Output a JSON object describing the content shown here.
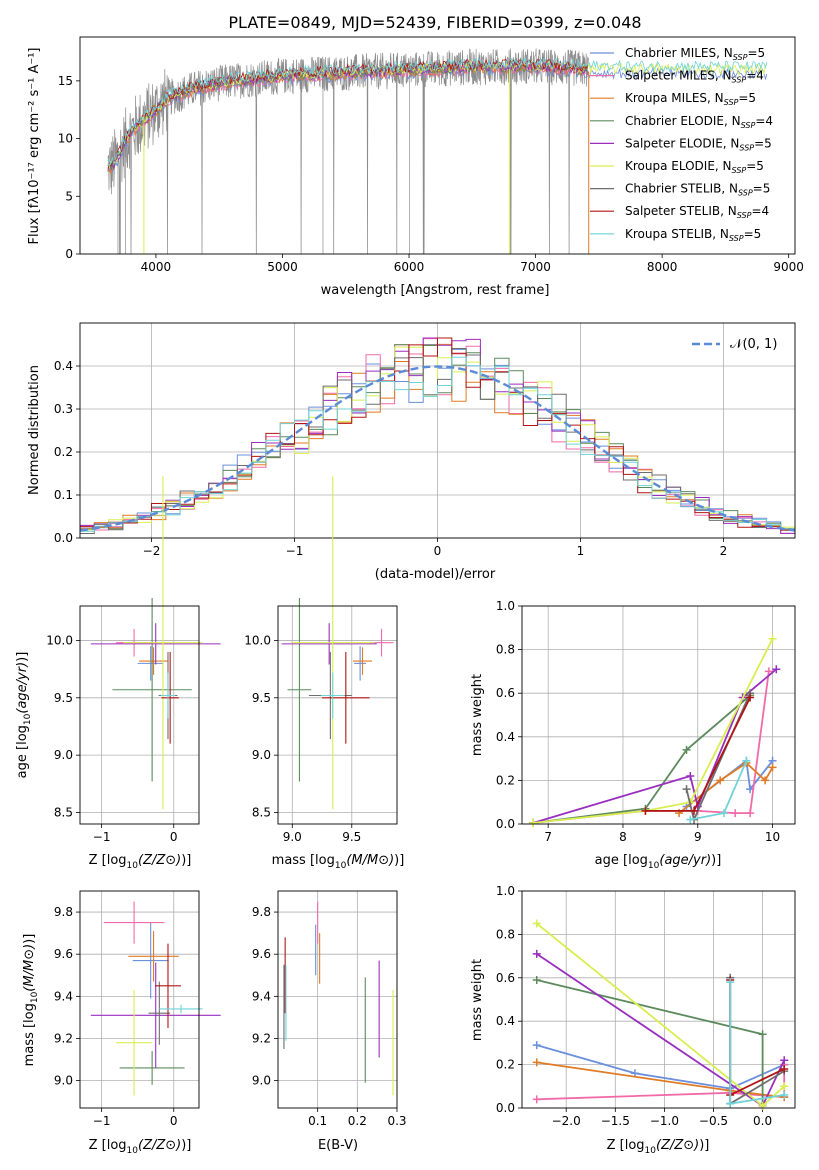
{
  "title": "PLATE=0849, MJD=52439, FIBERID=0399, z=0.048",
  "colors": {
    "Chabrier MILES": "#6a8fdc",
    "Salpeter MILES": "#f06aa8",
    "Kroupa MILES": "#e07b25",
    "Chabrier ELODIE": "#5c8a5c",
    "Salpeter ELODIE": "#9a2fbe",
    "Kroupa ELODIE": "#d9ee50",
    "Chabrier STELIB": "#6e6e6e",
    "Salpeter STELIB": "#b01515",
    "Kroupa STELIB": "#6fd3d8"
  },
  "chart_data": [
    {
      "type": "line",
      "title": "PLATE=0849, MJD=52439, FIBERID=0399, z=0.048",
      "xlabel": "wavelength [Angstrom, rest frame]",
      "ylabel": "Flux [fλ10⁻¹⁷ erg cm⁻² s⁻¹ A⁻¹]",
      "xlim": [
        3400,
        9050
      ],
      "ylim": [
        0,
        18.8
      ],
      "xticks": [
        4000,
        5000,
        6000,
        7000,
        8000,
        9000
      ],
      "yticks": [
        0,
        5,
        10,
        15
      ],
      "grid": false,
      "legend_loc": "upper right",
      "legend": [
        {
          "model": "Chabrier MILES",
          "nssp": "5"
        },
        {
          "model": "Salpeter MILES",
          "nssp": "4"
        },
        {
          "model": "Kroupa MILES",
          "nssp": "5"
        },
        {
          "model": "Chabrier ELODIE",
          "nssp": "4"
        },
        {
          "model": "Salpeter ELODIE",
          "nssp": "5"
        },
        {
          "model": "Kroupa ELODIE",
          "nssp": "5"
        },
        {
          "model": "Chabrier STELIB",
          "nssp": "5"
        },
        {
          "model": "Salpeter STELIB",
          "nssp": "4"
        },
        {
          "model": "Kroupa STELIB",
          "nssp": "5"
        }
      ],
      "data_envelope": {
        "x": [
          3650,
          3800,
          3950,
          4100,
          4300,
          4500,
          4700,
          4900,
          5100,
          5300,
          5500,
          5700,
          5900,
          6100,
          6300,
          6500,
          6700,
          6900,
          7100,
          7300,
          7420
        ],
        "y": [
          7.5,
          10.5,
          12.0,
          13.5,
          14.3,
          14.8,
          15.1,
          15.3,
          15.5,
          15.6,
          15.7,
          15.8,
          15.9,
          16.0,
          16.1,
          16.2,
          16.2,
          16.3,
          16.2,
          16.1,
          16.0
        ]
      },
      "model_extent": {
        "start": 3600,
        "end_optical": 7420,
        "end_uv": 8830
      }
    },
    {
      "type": "histogram",
      "xlabel": "(data-model)/error",
      "ylabel": "Normed distribution",
      "xlim": [
        -2.5,
        2.5
      ],
      "ylim": [
        0,
        0.5
      ],
      "xticks": [
        -2,
        -1,
        0,
        1,
        2
      ],
      "yticks": [
        0.0,
        0.1,
        0.2,
        0.3,
        0.4
      ],
      "grid": true,
      "legend_loc": "upper right",
      "reference_curve": {
        "label": "𝒩(0, 1)",
        "mean": 0,
        "sigma": 1,
        "color": "#5b8bd6"
      },
      "bin_width": 0.1
    },
    {
      "type": "errorbar",
      "xlabel": "Z [log10(Z/Z⊙)]",
      "ylabel": "age  [log10(age/yr)]",
      "xlim": [
        -1.3,
        0.35
      ],
      "ylim": [
        8.4,
        10.3
      ],
      "xticks": [
        -1,
        0
      ],
      "yticks": [
        8.5,
        9.0,
        9.5,
        10.0
      ],
      "points": [
        {
          "model": "Chabrier MILES",
          "x": -0.32,
          "xerr": 0.18,
          "y": 9.8,
          "yerr": 0.15
        },
        {
          "model": "Salpeter MILES",
          "x": -0.55,
          "xerr": 0.25,
          "y": 9.98,
          "yerr": 0.12
        },
        {
          "model": "Kroupa MILES",
          "x": -0.28,
          "xerr": 0.2,
          "y": 9.82,
          "yerr": 0.12
        },
        {
          "model": "Chabrier ELODIE",
          "x": -0.3,
          "xerr": 0.55,
          "y": 9.57,
          "yerr": 0.8
        },
        {
          "model": "Salpeter ELODIE",
          "x": -0.25,
          "xerr": 0.9,
          "y": 9.97,
          "yerr": 0.18
        },
        {
          "model": "Kroupa ELODIE",
          "x": -0.15,
          "xerr": 0.55,
          "y": 9.98,
          "yerr": 1.45
        },
        {
          "model": "Chabrier STELIB",
          "x": -0.08,
          "xerr": 0.13,
          "y": 9.52,
          "yerr": 0.38
        },
        {
          "model": "Salpeter STELIB",
          "x": -0.05,
          "xerr": 0.12,
          "y": 9.5,
          "yerr": 0.4
        },
        {
          "model": "Kroupa STELIB",
          "x": -0.08,
          "xerr": 0.1,
          "y": 9.52,
          "yerr": 0.2
        }
      ]
    },
    {
      "type": "errorbar",
      "xlabel": "mass [log10(M/M⊙)]",
      "xlim": [
        8.88,
        9.88
      ],
      "ylim": [
        8.4,
        10.3
      ],
      "xticks": [
        9.0,
        9.5
      ],
      "yticks": [
        8.5,
        9.0,
        9.5,
        10.0
      ],
      "points": [
        {
          "model": "Chabrier MILES",
          "x": 9.57,
          "xerr": 0.05,
          "y": 9.8,
          "yerr": 0.15
        },
        {
          "model": "Salpeter MILES",
          "x": 9.75,
          "xerr": 0.1,
          "y": 9.98,
          "yerr": 0.12
        },
        {
          "model": "Kroupa MILES",
          "x": 9.59,
          "xerr": 0.08,
          "y": 9.82,
          "yerr": 0.12
        },
        {
          "model": "Chabrier ELODIE",
          "x": 9.06,
          "xerr": 0.1,
          "y": 9.57,
          "yerr": 0.8
        },
        {
          "model": "Salpeter ELODIE",
          "x": 9.31,
          "xerr": 0.4,
          "y": 9.97,
          "yerr": 0.18
        },
        {
          "model": "Kroupa ELODIE",
          "x": 9.34,
          "xerr": 0.35,
          "y": 9.98,
          "yerr": 1.45
        },
        {
          "model": "Chabrier STELIB",
          "x": 9.32,
          "xerr": 0.18,
          "y": 9.52,
          "yerr": 0.38
        },
        {
          "model": "Salpeter STELIB",
          "x": 9.45,
          "xerr": 0.2,
          "y": 9.5,
          "yerr": 0.4
        },
        {
          "model": "Kroupa STELIB",
          "x": 9.34,
          "xerr": 0.1,
          "y": 9.52,
          "yerr": 0.2
        }
      ]
    },
    {
      "type": "line",
      "xlabel": "age  [log10(age/yr)]",
      "ylabel": "mass weight",
      "xlim": [
        6.65,
        10.3
      ],
      "ylim": [
        0,
        1.0
      ],
      "xticks": [
        7,
        8,
        9,
        10
      ],
      "yticks": [
        0.0,
        0.2,
        0.4,
        0.6,
        0.8,
        1.0
      ],
      "grid": true,
      "series": [
        {
          "model": "Chabrier MILES",
          "x": [
            8.85,
            9.65,
            9.7,
            10.0
          ],
          "y": [
            0.08,
            0.29,
            0.16,
            0.29
          ]
        },
        {
          "model": "Salpeter MILES",
          "x": [
            6.8,
            8.3,
            9.0,
            9.5,
            9.7,
            9.95
          ],
          "y": [
            0.005,
            0.06,
            0.06,
            0.05,
            0.05,
            0.7
          ]
        },
        {
          "model": "Kroupa MILES",
          "x": [
            8.75,
            9.3,
            9.65,
            9.9,
            10.0
          ],
          "y": [
            0.05,
            0.2,
            0.28,
            0.2,
            0.26
          ]
        },
        {
          "model": "Chabrier ELODIE",
          "x": [
            6.8,
            8.3,
            8.85,
            9.7
          ],
          "y": [
            0.005,
            0.07,
            0.34,
            0.59
          ]
        },
        {
          "model": "Salpeter ELODIE",
          "x": [
            6.8,
            8.9,
            9.0,
            9.6,
            10.05
          ],
          "y": [
            0.005,
            0.22,
            0.08,
            0.58,
            0.71
          ]
        },
        {
          "model": "Kroupa ELODIE",
          "x": [
            6.8,
            8.3,
            8.9,
            10.0
          ],
          "y": [
            0.005,
            0.06,
            0.1,
            0.85
          ]
        },
        {
          "model": "Chabrier STELIB",
          "x": [
            8.85,
            8.95,
            9.7
          ],
          "y": [
            0.16,
            0.02,
            0.6
          ]
        },
        {
          "model": "Salpeter STELIB",
          "x": [
            8.3,
            8.95,
            9.7
          ],
          "y": [
            0.06,
            0.06,
            0.58
          ]
        },
        {
          "model": "Kroupa STELIB",
          "x": [
            8.9,
            9.35,
            9.65
          ],
          "y": [
            0.02,
            0.05,
            0.29
          ]
        }
      ]
    },
    {
      "type": "errorbar",
      "xlabel": "Z [log10(Z/Z⊙)]",
      "ylabel": "mass [log10(M/M⊙)]",
      "xlim": [
        -1.3,
        0.35
      ],
      "ylim": [
        8.87,
        9.9
      ],
      "xticks": [
        -1,
        0
      ],
      "yticks": [
        9.0,
        9.2,
        9.4,
        9.6,
        9.8
      ],
      "points": [
        {
          "model": "Chabrier MILES",
          "x": -0.32,
          "xerr": 0.25,
          "y": 9.57,
          "yerr": 0.18
        },
        {
          "model": "Salpeter MILES",
          "x": -0.55,
          "xerr": 0.42,
          "y": 9.75,
          "yerr": 0.1
        },
        {
          "model": "Kroupa MILES",
          "x": -0.28,
          "xerr": 0.35,
          "y": 9.59,
          "yerr": 0.12
        },
        {
          "model": "Chabrier ELODIE",
          "x": -0.3,
          "xerr": 0.45,
          "y": 9.06,
          "yerr": 0.08
        },
        {
          "model": "Salpeter ELODIE",
          "x": -0.25,
          "xerr": 0.9,
          "y": 9.31,
          "yerr": 0.25
        },
        {
          "model": "Kroupa ELODIE",
          "x": -0.55,
          "xerr": 0.25,
          "y": 9.18,
          "yerr": 0.25
        },
        {
          "model": "Chabrier STELIB",
          "x": -0.2,
          "xerr": 0.15,
          "y": 9.32,
          "yerr": 0.15
        },
        {
          "model": "Salpeter STELIB",
          "x": -0.08,
          "xerr": 0.18,
          "y": 9.45,
          "yerr": 0.2
        },
        {
          "model": "Kroupa STELIB",
          "x": 0.1,
          "xerr": 0.3,
          "y": 9.34,
          "yerr": 0.02
        }
      ]
    },
    {
      "type": "errorbar",
      "xlabel": "E(B-V)",
      "xlim": [
        0.0,
        0.3
      ],
      "ylim": [
        8.87,
        9.9
      ],
      "xticks": [
        0.1,
        0.2,
        0.3
      ],
      "yticks": [
        9.0,
        9.2,
        9.4,
        9.6,
        9.8
      ],
      "points": [
        {
          "model": "Chabrier MILES",
          "x": 0.095,
          "y": 9.62,
          "yerr": 0.12
        },
        {
          "model": "Salpeter MILES",
          "x": 0.1,
          "y": 9.75,
          "yerr": 0.1
        },
        {
          "model": "Kroupa MILES",
          "x": 0.105,
          "y": 9.58,
          "yerr": 0.12
        },
        {
          "model": "Chabrier ELODIE",
          "x": 0.22,
          "y": 9.24,
          "yerr": 0.25
        },
        {
          "model": "Salpeter ELODIE",
          "x": 0.255,
          "y": 9.34,
          "yerr": 0.23
        },
        {
          "model": "Kroupa ELODIE",
          "x": 0.29,
          "y": 9.18,
          "yerr": 0.25
        },
        {
          "model": "Chabrier STELIB",
          "x": 0.015,
          "y": 9.35,
          "yerr": 0.2
        },
        {
          "model": "Salpeter STELIB",
          "x": 0.018,
          "y": 9.5,
          "yerr": 0.18
        },
        {
          "model": "Kroupa STELIB",
          "x": 0.02,
          "y": 9.37,
          "yerr": 0.18
        }
      ]
    },
    {
      "type": "line",
      "xlabel": "Z [log10(Z/Z⊙)]",
      "ylabel": "mass weight",
      "xlim": [
        -2.45,
        0.33
      ],
      "ylim": [
        0,
        1.0
      ],
      "xticks": [
        -2.0,
        -1.5,
        -1.0,
        -0.5,
        0.0
      ],
      "yticks": [
        0.0,
        0.2,
        0.4,
        0.6,
        0.8,
        1.0
      ],
      "grid": true,
      "series": [
        {
          "model": "Chabrier MILES",
          "x": [
            -2.3,
            -1.3,
            -0.33,
            0.22
          ],
          "y": [
            0.29,
            0.16,
            0.09,
            0.2
          ]
        },
        {
          "model": "Salpeter MILES",
          "x": [
            -2.3,
            -0.33,
            0.22,
            0.22
          ],
          "y": [
            0.04,
            0.07,
            0.05,
            0.2
          ]
        },
        {
          "model": "Kroupa MILES",
          "x": [
            -2.3,
            -0.33,
            0.22
          ],
          "y": [
            0.21,
            0.08,
            0.05
          ]
        },
        {
          "model": "Chabrier ELODIE",
          "x": [
            -2.3,
            0.0,
            0.0
          ],
          "y": [
            0.59,
            0.34,
            0.02
          ]
        },
        {
          "model": "Salpeter ELODIE",
          "x": [
            -2.3,
            0.0,
            0.22
          ],
          "y": [
            0.71,
            0.01,
            0.22
          ]
        },
        {
          "model": "Kroupa ELODIE",
          "x": [
            -2.3,
            0.0,
            0.22
          ],
          "y": [
            0.85,
            0.01,
            0.1
          ]
        },
        {
          "model": "Chabrier STELIB",
          "x": [
            -0.33,
            -0.33,
            0.22
          ],
          "y": [
            0.6,
            0.02,
            0.17
          ]
        },
        {
          "model": "Salpeter STELIB",
          "x": [
            -0.33,
            -0.33,
            0.22
          ],
          "y": [
            0.59,
            0.06,
            0.18
          ]
        },
        {
          "model": "Kroupa STELIB",
          "x": [
            -0.33,
            -0.33,
            0.22
          ],
          "y": [
            0.58,
            0.02,
            0.06
          ]
        }
      ]
    }
  ]
}
